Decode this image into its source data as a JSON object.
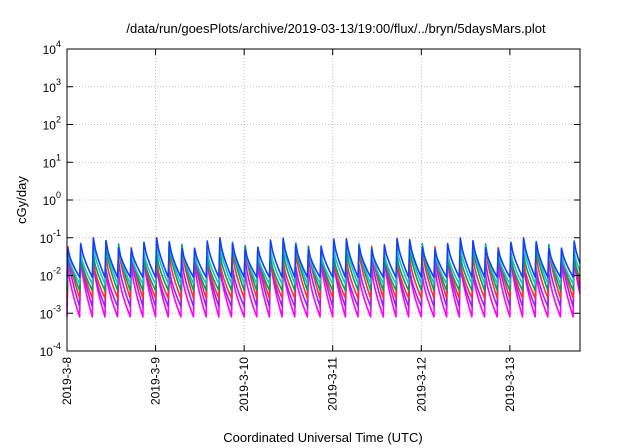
{
  "chart_data": {
    "type": "line",
    "title": "/data/run/goesPlots/archive/2019-03-13/19:00/flux/../bryn/5daysMars.plot",
    "xlabel": "Coordinated Universal Time (UTC)",
    "ylabel": "cGy/day",
    "yscale": "log",
    "ylim": [
      0.0001,
      10000
    ],
    "xlim": [
      "2019-03-08T00:00",
      "2019-03-13T19:00"
    ],
    "x_ticks": [
      "2019-3-8",
      "2019-3-9",
      "2019-3-10",
      "2019-3-11",
      "2019-3-12",
      "2019-3-13"
    ],
    "y_ticks": [
      {
        "base": "10",
        "exp": "-4"
      },
      {
        "base": "10",
        "exp": "-3"
      },
      {
        "base": "10",
        "exp": "-2"
      },
      {
        "base": "10",
        "exp": "-1"
      },
      {
        "base": "10",
        "exp": "0"
      },
      {
        "base": "10",
        "exp": "1"
      },
      {
        "base": "10",
        "exp": "2"
      },
      {
        "base": "10",
        "exp": "3"
      },
      {
        "base": "10",
        "exp": "4"
      }
    ],
    "grid": true,
    "legend": "none",
    "cycles_per_day": 7,
    "series": [
      {
        "color": "#ff00ff",
        "peak": 0.03,
        "trough": 0.0008
      },
      {
        "color": "#a020f0",
        "peak": 0.04,
        "trough": 0.0015
      },
      {
        "color": "#ff3030",
        "peak": 0.06,
        "trough": 0.0025
      },
      {
        "color": "#00a060",
        "peak": 0.07,
        "trough": 0.004
      },
      {
        "color": "#20c0c0",
        "peak": 0.08,
        "trough": 0.006
      },
      {
        "color": "#1040ff",
        "peak": 0.1,
        "trough": 0.009
      }
    ]
  }
}
